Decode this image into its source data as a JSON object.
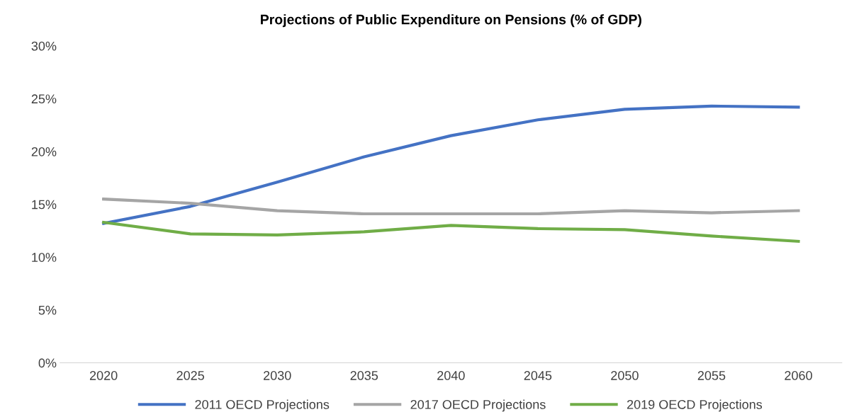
{
  "chart_data": {
    "type": "line",
    "title": "Projections of Public Expenditure on Pensions (% of GDP)",
    "categories": [
      "2020",
      "2025",
      "2030",
      "2035",
      "2040",
      "2045",
      "2050",
      "2055",
      "2060"
    ],
    "series": [
      {
        "name": "2011 OECD Projections",
        "color": "#4472c4",
        "values": [
          13.2,
          14.8,
          17.1,
          19.5,
          21.5,
          23.0,
          24.0,
          24.3,
          24.2
        ]
      },
      {
        "name": "2017 OECD Projections",
        "color": "#a5a5a5",
        "values": [
          15.5,
          15.1,
          14.4,
          14.1,
          14.1,
          14.1,
          14.4,
          14.2,
          14.4
        ]
      },
      {
        "name": "2019 OECD Projections",
        "color": "#70ad47",
        "values": [
          13.3,
          12.2,
          12.1,
          12.4,
          13.0,
          12.7,
          12.6,
          12.0,
          11.5
        ]
      }
    ],
    "ylim": [
      0,
      30
    ],
    "yticks": [
      {
        "value": 0,
        "label": "0%"
      },
      {
        "value": 5,
        "label": "5%"
      },
      {
        "value": 10,
        "label": "10%"
      },
      {
        "value": 15,
        "label": "15%"
      },
      {
        "value": 20,
        "label": "20%"
      },
      {
        "value": 25,
        "label": "25%"
      },
      {
        "value": 30,
        "label": "30%"
      }
    ],
    "grid": false,
    "legend": "bottom",
    "marker": "none",
    "line_style": "solid"
  }
}
